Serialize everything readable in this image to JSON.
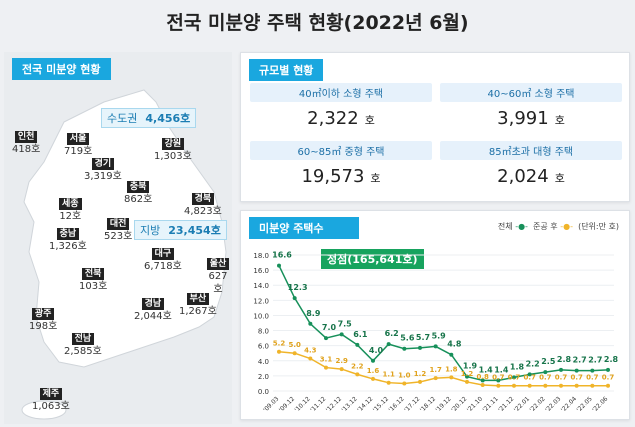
{
  "title": "전국 미분양 주택 현황(2022년 6월)",
  "map": {
    "tag": "전국 미분양 현황",
    "capital": {
      "label": "수도권",
      "value": "4,456호"
    },
    "local": {
      "label": "지방",
      "value": "23,454호"
    },
    "regions": [
      {
        "name": "서울",
        "value": "719호"
      },
      {
        "name": "인천",
        "value": "418호"
      },
      {
        "name": "강원",
        "value": "1,303호"
      },
      {
        "name": "경기",
        "value": "3,319호"
      },
      {
        "name": "충북",
        "value": "862호"
      },
      {
        "name": "경북",
        "value": "4,823호"
      },
      {
        "name": "세종",
        "value": "12호"
      },
      {
        "name": "대전",
        "value": "523호"
      },
      {
        "name": "충남",
        "value": "1,326호"
      },
      {
        "name": "대구",
        "value": "6,718호"
      },
      {
        "name": "울산",
        "value": "627호"
      },
      {
        "name": "전북",
        "value": "103호"
      },
      {
        "name": "경남",
        "value": "2,044호"
      },
      {
        "name": "부산",
        "value": "1,267호"
      },
      {
        "name": "광주",
        "value": "198호"
      },
      {
        "name": "전남",
        "value": "2,585호"
      },
      {
        "name": "제주",
        "value": "1,063호"
      }
    ]
  },
  "sizes": {
    "tag": "규모별 현황",
    "unit": "호",
    "items": [
      {
        "label": "40㎡이하 소형 주택",
        "value": "2,322"
      },
      {
        "label": "40~60㎡ 소형 주택",
        "value": "3,991"
      },
      {
        "label": "60~85㎡ 중형 주택",
        "value": "19,573"
      },
      {
        "label": "85㎡초과 대형 주택",
        "value": "2,024"
      }
    ]
  },
  "colors": {
    "total": "#17905a",
    "completed": "#f0b429",
    "accent": "#1aa7df"
  },
  "chart_data": {
    "type": "line",
    "title": "미분양 주택수",
    "unit_note": "(단위:만 호)",
    "annotation": "정점(165,641호)",
    "categories": [
      "'09.03",
      "'09.12",
      "'10.12",
      "'11.12",
      "'12.12",
      "'13.12",
      "'14.12",
      "'15.12",
      "'16.12",
      "'17.12",
      "'18.12",
      "'19.12",
      "'20.12",
      "'21.10",
      "'21.11",
      "'21.12",
      "'22.01",
      "'22.02",
      "'22.03",
      "'22.04",
      "'22.05",
      "'22.06"
    ],
    "series": [
      {
        "name": "전체",
        "values": [
          16.6,
          12.3,
          8.9,
          7.0,
          7.5,
          6.1,
          4.0,
          6.2,
          5.6,
          5.7,
          5.9,
          4.8,
          1.9,
          1.4,
          1.4,
          1.8,
          2.2,
          2.5,
          2.8,
          2.7,
          2.7,
          2.8
        ]
      },
      {
        "name": "준공 후",
        "values": [
          5.2,
          5.0,
          4.3,
          3.1,
          2.9,
          2.2,
          1.6,
          1.1,
          1.0,
          1.2,
          1.7,
          1.8,
          1.2,
          0.8,
          0.7,
          0.7,
          0.7,
          0.7,
          0.7,
          0.7,
          0.7,
          0.7
        ]
      }
    ],
    "yticks": [
      "0.0",
      "2.0",
      "4.0",
      "6.0",
      "8.0",
      "10.0",
      "12.0",
      "14.0",
      "16.0",
      "18.0"
    ],
    "ylim": [
      0,
      18
    ],
    "grid": true,
    "legend": "top-right"
  }
}
